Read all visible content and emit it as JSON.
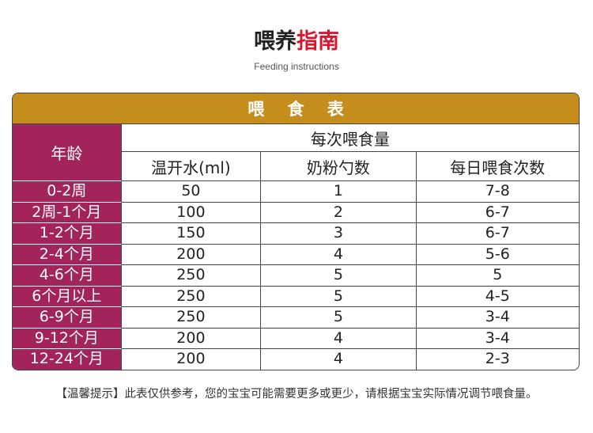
{
  "header": {
    "title_black": "喂养",
    "title_red": "指南",
    "subtitle": "Feeding instructions"
  },
  "table": {
    "caption": "喂 食 表",
    "age_header": "年龄",
    "group_header": "每次喂食量",
    "columns": [
      "温开水(ml)",
      "奶粉勺数",
      "每日喂食次数"
    ],
    "rows": [
      [
        "0-2周",
        "50",
        "1",
        "7-8"
      ],
      [
        "2周-1个月",
        "100",
        "2",
        "6-7"
      ],
      [
        "1-2个月",
        "150",
        "3",
        "6-7"
      ],
      [
        "2-4个月",
        "200",
        "4",
        "5-6"
      ],
      [
        "4-6个月",
        "250",
        "5",
        "5"
      ],
      [
        "6个月以上",
        "250",
        "5",
        "4-5"
      ],
      [
        "6-9个月",
        "250",
        "5",
        "3-4"
      ],
      [
        "9-12个月",
        "200",
        "4",
        "3-4"
      ],
      [
        "12-24个月",
        "200",
        "4",
        "2-3"
      ]
    ]
  },
  "footer": {
    "note": "【温馨提示】此表仅供参考，您的宝宝可能需要更多或更少，请根据宝宝实际情况调节喂食量。"
  }
}
